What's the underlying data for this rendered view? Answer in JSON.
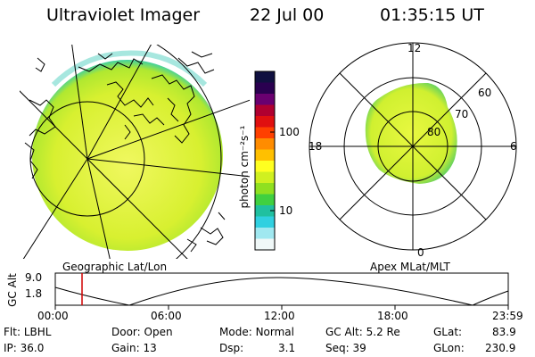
{
  "header": {
    "title": "Ultraviolet Imager",
    "date": "22 Jul 00",
    "time": "01:35:15 UT"
  },
  "colorbar": {
    "unit_label": "photon cm⁻²s⁻¹",
    "ticks": [
      "100",
      "10"
    ],
    "colors": [
      "#101040",
      "#2a0050",
      "#6a0070",
      "#b00030",
      "#e01010",
      "#ff4000",
      "#ff8c00",
      "#ffc000",
      "#ffff20",
      "#d0f020",
      "#90e020",
      "#40d040",
      "#20c0a0",
      "#30d0e0",
      "#a0e8f0",
      "#f0f8f8"
    ]
  },
  "left_map": {
    "caption": "Geographic Lat/Lon",
    "fill_color": "#d8f030",
    "rim_color": "#40d0a0"
  },
  "right_map": {
    "caption": "Apex MLat/MLT",
    "mlt_labels": {
      "top": "12",
      "left": "18",
      "right": "6",
      "bottom": "0"
    },
    "lat_labels": [
      "60",
      "70",
      "80"
    ]
  },
  "altitude_plot": {
    "ylabel": "GC Alt",
    "yticks": [
      "9.0",
      "1.8"
    ],
    "xticks": [
      "00:00",
      "06:00",
      "12:00",
      "18:00",
      "23:59"
    ],
    "marker_color": "#d00000"
  },
  "info": {
    "flt_label": "Flt:",
    "flt_value": "LBHL",
    "door_label": "Door:",
    "door_value": "Open",
    "mode_label": "Mode:",
    "mode_value": "Normal",
    "gcalt_label": "GC Alt:",
    "gcalt_value": "5.2 Re",
    "glat_label": "GLat:",
    "glat_value": "83.9",
    "ip_label": "IP:",
    "ip_value": "36.0",
    "gain_label": "Gain:",
    "gain_value": "13",
    "dsp_label": "Dsp:",
    "dsp_value": "3.1",
    "seq_label": "Seq:",
    "seq_value": "39",
    "glon_label": "GLon:",
    "glon_value": "230.9"
  }
}
